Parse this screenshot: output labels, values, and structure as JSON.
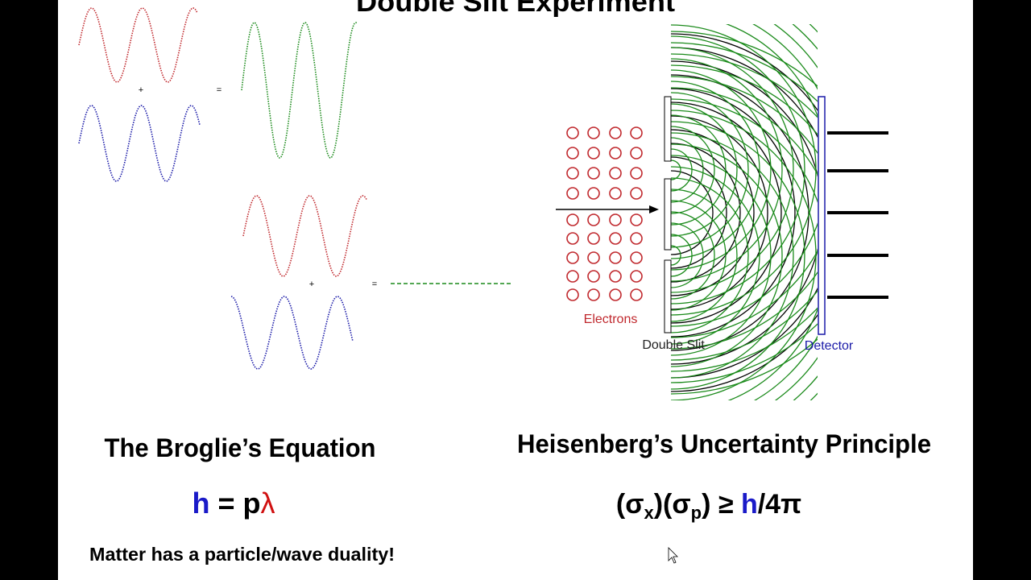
{
  "title": "Double Slit Experiment",
  "wave_demo": {
    "constructive": {
      "plus": "+",
      "equals": "="
    },
    "destructive": {
      "plus": "+",
      "equals": "="
    }
  },
  "diagram": {
    "electrons_label": "Electrons",
    "slit_label": "Double Slit",
    "detector_label": "Detector"
  },
  "de_broglie": {
    "heading": "The Broglie’s Equation",
    "equation": {
      "h": "h",
      "middle": " = p",
      "lambda": "λ"
    }
  },
  "heisenberg": {
    "heading": "Heisenberg’s Uncertainty Principle",
    "equation": {
      "open": "(σ",
      "sub_x": "x",
      "mid": ")(σ",
      "sub_p": "p",
      "ge": ") ≥ ",
      "h": "h",
      "rest": "/4π"
    }
  },
  "footer": "Matter has a particle/wave duality!"
}
